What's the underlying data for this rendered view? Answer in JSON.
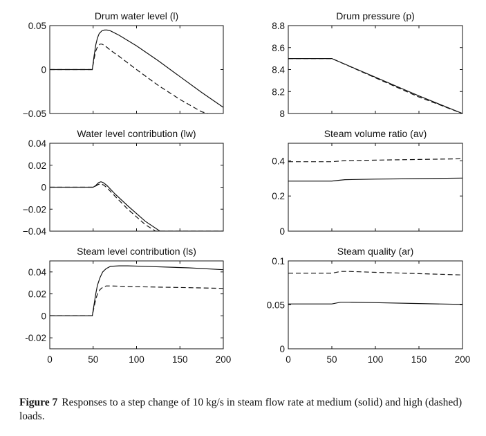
{
  "caption": {
    "label": "Figure 7",
    "text": "Responses to a step change of 10 kg/s in steam flow rate at medium (solid) and high (dashed) loads."
  },
  "chart_data": [
    {
      "type": "line",
      "title": "Drum water level (l)",
      "xlim": [
        0,
        200
      ],
      "ylim": [
        -0.05,
        0.05
      ],
      "yticks": [
        "0.05",
        "0",
        "−0.05"
      ],
      "ytick_values": [
        0.05,
        0,
        -0.05
      ],
      "xticks": [],
      "xtick_values": [],
      "series": [
        {
          "style": "solid",
          "x": [
            0,
            49,
            51,
            53,
            55,
            57,
            60,
            63,
            66,
            70,
            80,
            100,
            125,
            150,
            175,
            200
          ],
          "y": [
            0,
            0,
            0.015,
            0.028,
            0.036,
            0.041,
            0.044,
            0.045,
            0.045,
            0.044,
            0.039,
            0.027,
            0.01,
            -0.008,
            -0.026,
            -0.043
          ]
        },
        {
          "style": "dashed",
          "x": [
            0,
            49,
            51,
            53,
            55,
            58,
            60,
            62,
            65,
            70,
            80,
            100,
            125,
            150,
            175,
            182
          ],
          "y": [
            0,
            0,
            0.012,
            0.021,
            0.026,
            0.029,
            0.029,
            0.028,
            0.026,
            0.022,
            0.015,
            0.0,
            -0.018,
            -0.034,
            -0.048,
            -0.05
          ]
        }
      ]
    },
    {
      "type": "line",
      "title": "Drum pressure (p)",
      "xlim": [
        0,
        200
      ],
      "ylim": [
        8,
        8.8
      ],
      "yticks": [
        "8.8",
        "8.6",
        "8.4",
        "8.2",
        "8"
      ],
      "ytick_values": [
        8.8,
        8.6,
        8.4,
        8.2,
        8
      ],
      "xticks": [],
      "xtick_values": [],
      "series": [
        {
          "style": "solid",
          "x": [
            0,
            50,
            100,
            150,
            200
          ],
          "y": [
            8.5,
            8.5,
            8.33,
            8.16,
            8.0
          ]
        },
        {
          "style": "dashed",
          "x": [
            0,
            50,
            100,
            150,
            200
          ],
          "y": [
            8.5,
            8.5,
            8.325,
            8.15,
            8.0
          ]
        }
      ]
    },
    {
      "type": "line",
      "title": "Water level contribution (lw)",
      "xlim": [
        0,
        200
      ],
      "ylim": [
        -0.04,
        0.04
      ],
      "yticks": [
        "0.04",
        "0.02",
        "0",
        "−0.02",
        "−0.04"
      ],
      "ytick_values": [
        0.04,
        0.02,
        0,
        -0.02,
        -0.04
      ],
      "xticks": [],
      "xtick_values": [],
      "series": [
        {
          "style": "solid",
          "x": [
            0,
            50,
            53,
            56,
            59,
            62,
            66,
            75,
            90,
            110,
            127,
            200
          ],
          "y": [
            0,
            0,
            0.0015,
            0.004,
            0.005,
            0.004,
            0.0015,
            -0.006,
            -0.017,
            -0.031,
            -0.04,
            -0.04
          ]
        },
        {
          "style": "dashed",
          "x": [
            0,
            50,
            53,
            56,
            59,
            62,
            66,
            75,
            90,
            110,
            122,
            200
          ],
          "y": [
            0,
            0,
            0.001,
            0.0025,
            0.003,
            0.002,
            -0.0005,
            -0.008,
            -0.02,
            -0.034,
            -0.04,
            -0.04
          ]
        }
      ]
    },
    {
      "type": "line",
      "title": "Steam volume ratio (av)",
      "xlim": [
        0,
        200
      ],
      "ylim": [
        0,
        0.5
      ],
      "yticks": [
        "0.4",
        "0.2",
        "0"
      ],
      "ytick_values": [
        0.4,
        0.2,
        0
      ],
      "xticks": [],
      "xtick_values": [],
      "series": [
        {
          "style": "solid",
          "x": [
            0,
            50,
            65,
            100,
            150,
            200
          ],
          "y": [
            0.285,
            0.285,
            0.293,
            0.296,
            0.299,
            0.302
          ]
        },
        {
          "style": "dashed",
          "x": [
            0,
            50,
            65,
            100,
            150,
            200
          ],
          "y": [
            0.395,
            0.395,
            0.401,
            0.404,
            0.408,
            0.412
          ]
        }
      ]
    },
    {
      "type": "line",
      "title": "Steam level contribution (ls)",
      "xlim": [
        0,
        200
      ],
      "ylim": [
        -0.03,
        0.05
      ],
      "yticks": [
        "0.04",
        "0.02",
        "0",
        "-0.02"
      ],
      "ytick_values": [
        0.04,
        0.02,
        0,
        -0.02
      ],
      "xticks": [
        "0",
        "50",
        "100",
        "150",
        "200"
      ],
      "xtick_values": [
        0,
        50,
        100,
        150,
        200
      ],
      "series": [
        {
          "style": "solid",
          "x": [
            0,
            49,
            51,
            53,
            55,
            58,
            61,
            65,
            70,
            80,
            90,
            120,
            160,
            200
          ],
          "y": [
            0,
            0,
            0.01,
            0.02,
            0.028,
            0.035,
            0.04,
            0.043,
            0.045,
            0.0455,
            0.0455,
            0.0448,
            0.0437,
            0.042
          ]
        },
        {
          "style": "dashed",
          "x": [
            0,
            49,
            51,
            53,
            55,
            58,
            61,
            65,
            70,
            80,
            100,
            150,
            200
          ],
          "y": [
            0,
            0,
            0.008,
            0.015,
            0.02,
            0.024,
            0.026,
            0.0272,
            0.0272,
            0.027,
            0.0265,
            0.0258,
            0.025
          ]
        }
      ]
    },
    {
      "type": "line",
      "title": "Steam quality (ar)",
      "xlim": [
        0,
        200
      ],
      "ylim": [
        0,
        0.1
      ],
      "yticks": [
        "0.1",
        "0.05",
        "0"
      ],
      "ytick_values": [
        0.1,
        0.05,
        0
      ],
      "xticks": [
        "0",
        "50",
        "100",
        "150",
        "200"
      ],
      "xtick_values": [
        0,
        50,
        100,
        150,
        200
      ],
      "series": [
        {
          "style": "solid",
          "x": [
            0,
            50,
            60,
            70,
            100,
            150,
            200
          ],
          "y": [
            0.051,
            0.051,
            0.053,
            0.053,
            0.0525,
            0.0515,
            0.0505
          ]
        },
        {
          "style": "dashed",
          "x": [
            0,
            50,
            60,
            70,
            100,
            150,
            200
          ],
          "y": [
            0.086,
            0.086,
            0.088,
            0.088,
            0.087,
            0.0855,
            0.084
          ]
        }
      ]
    }
  ]
}
